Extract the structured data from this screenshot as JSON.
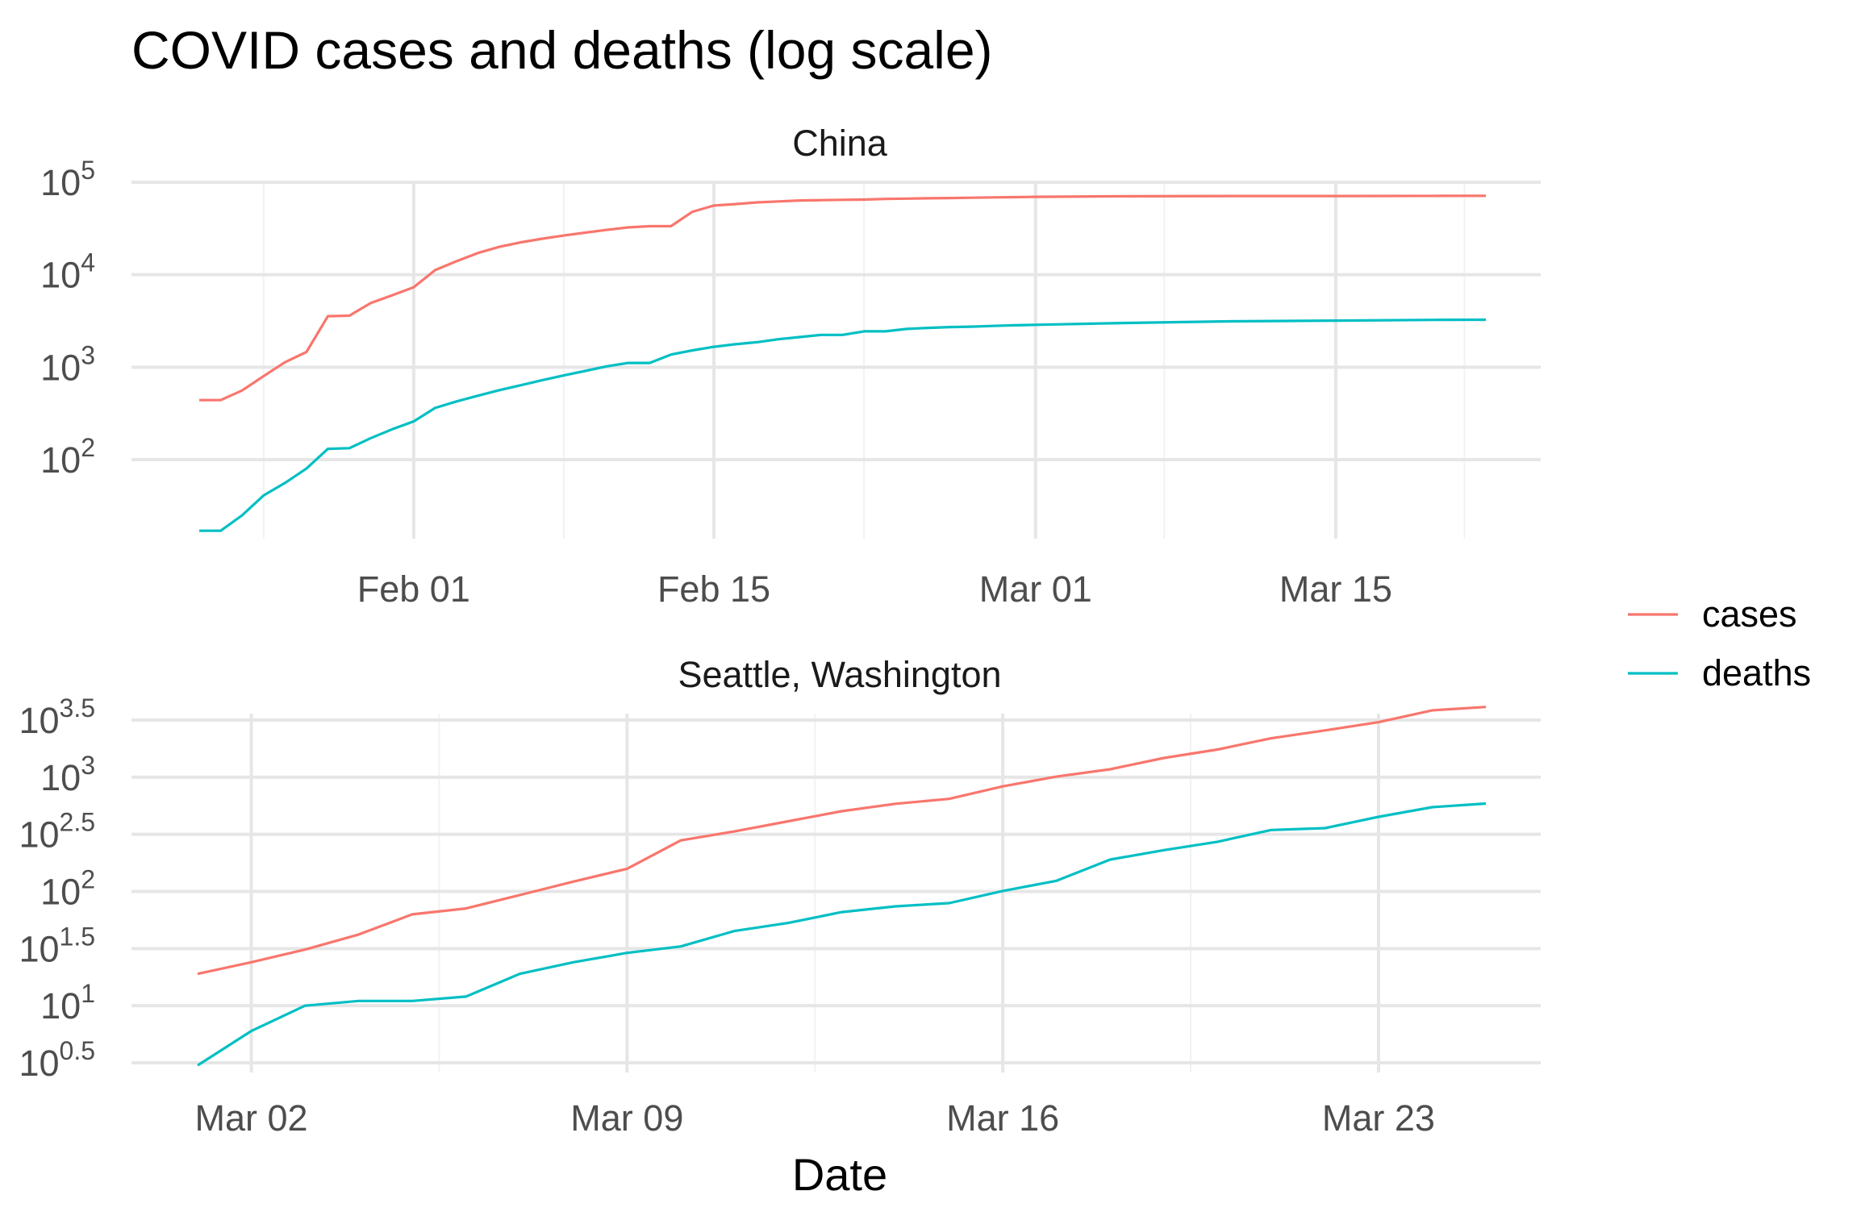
{
  "chart_data": {
    "type": "line",
    "title": "COVID cases and deaths (log scale)",
    "xlabel": "Date",
    "ylabel": "",
    "yscale": "log10",
    "grid": true,
    "legend_position": "right",
    "legend": [
      {
        "name": "cases",
        "color": "#F8766D"
      },
      {
        "name": "deaths",
        "color": "#00BFC4"
      }
    ],
    "panels": [
      {
        "name": "China",
        "x": [
          "2020-01-22",
          "2020-01-23",
          "2020-01-24",
          "2020-01-25",
          "2020-01-26",
          "2020-01-27",
          "2020-01-28",
          "2020-01-29",
          "2020-01-30",
          "2020-01-31",
          "2020-02-01",
          "2020-02-02",
          "2020-02-03",
          "2020-02-04",
          "2020-02-05",
          "2020-02-06",
          "2020-02-07",
          "2020-02-08",
          "2020-02-09",
          "2020-02-10",
          "2020-02-11",
          "2020-02-12",
          "2020-02-13",
          "2020-02-14",
          "2020-02-15",
          "2020-02-16",
          "2020-02-17",
          "2020-02-18",
          "2020-02-19",
          "2020-02-20",
          "2020-02-21",
          "2020-02-22",
          "2020-02-23",
          "2020-02-24",
          "2020-02-25",
          "2020-02-26",
          "2020-02-27",
          "2020-02-28",
          "2020-02-29",
          "2020-03-01",
          "2020-03-05",
          "2020-03-10",
          "2020-03-15",
          "2020-03-20",
          "2020-03-22"
        ],
        "series": [
          {
            "name": "cases",
            "values": [
              440,
              440,
              560,
              800,
              1130,
              1460,
              3560,
              3600,
              4950,
              6000,
              7300,
              11200,
              14000,
              17200,
              20000,
              22400,
              24500,
              26500,
              28500,
              30500,
              32500,
              33500,
              33500,
              48000,
              56000,
              58000,
              60500,
              62000,
              63500,
              64000,
              64500,
              65000,
              66000,
              66500,
              67000,
              67500,
              68000,
              68500,
              69000,
              69500,
              70500,
              71000,
              71000,
              71200,
              71300
            ]
          },
          {
            "name": "deaths",
            "values": [
              17,
              17,
              25,
              41,
              56,
              80,
              131,
              133,
              171,
              213,
              259,
              362,
              426,
              492,
              565,
              638,
              724,
              813,
              910,
              1020,
              1110,
              1110,
              1370,
              1520,
              1660,
              1770,
              1860,
              2004,
              2118,
              2236,
              2236,
              2442,
              2442,
              2592,
              2663,
              2715,
              2744,
              2790,
              2835,
              2870,
              3000,
              3130,
              3190,
              3250,
              3260
            ]
          }
        ],
        "xticks": [
          "Feb 01",
          "Feb 15",
          "Mar 01",
          "Mar 15"
        ],
        "yticks": [
          {
            "base": "10",
            "exp": "2"
          },
          {
            "base": "10",
            "exp": "3"
          },
          {
            "base": "10",
            "exp": "4"
          },
          {
            "base": "10",
            "exp": "5"
          }
        ]
      },
      {
        "name": "Seattle, Washington",
        "x": [
          "2020-03-01",
          "2020-03-02",
          "2020-03-03",
          "2020-03-04",
          "2020-03-05",
          "2020-03-06",
          "2020-03-07",
          "2020-03-08",
          "2020-03-09",
          "2020-03-10",
          "2020-03-11",
          "2020-03-12",
          "2020-03-13",
          "2020-03-14",
          "2020-03-15",
          "2020-03-16",
          "2020-03-17",
          "2020-03-18",
          "2020-03-19",
          "2020-03-20",
          "2020-03-21",
          "2020-03-22",
          "2020-03-23",
          "2020-03-24",
          "2020-03-25"
        ],
        "series": [
          {
            "name": "cases",
            "values": [
              19,
              24,
              31,
              42,
              63,
              71,
              93,
              122,
              158,
              280,
              335,
              411,
              504,
              585,
              646,
              831,
              1012,
              1173,
              1474,
              1746,
              2191,
              2567,
              3030,
              3851,
              4120
            ]
          },
          {
            "name": "deaths",
            "values": [
              3,
              6,
              10,
              11,
              11,
              12,
              19,
              24,
              29,
              33,
              45,
              53,
              66,
              74,
              79,
              101,
              124,
              190,
              230,
              272,
              345,
              358,
              450,
              547,
              588
            ]
          }
        ],
        "xticks": [
          "Mar 02",
          "Mar 09",
          "Mar 16",
          "Mar 23"
        ],
        "yticks": [
          {
            "base": "10",
            "exp": "0.5"
          },
          {
            "base": "10",
            "exp": "1"
          },
          {
            "base": "10",
            "exp": "1.5"
          },
          {
            "base": "10",
            "exp": "2"
          },
          {
            "base": "10",
            "exp": "2.5"
          },
          {
            "base": "10",
            "exp": "3"
          },
          {
            "base": "10",
            "exp": "3.5"
          }
        ]
      }
    ]
  }
}
